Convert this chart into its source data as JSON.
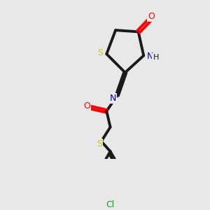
{
  "background_color": "#e8e8e8",
  "bond_color": "#1a1a1a",
  "colors": {
    "O": "#ff0000",
    "N": "#0000cc",
    "S": "#cccc00",
    "Cl": "#00aa00",
    "C": "#1a1a1a"
  },
  "lw": 1.5,
  "lw2": 2.8
}
